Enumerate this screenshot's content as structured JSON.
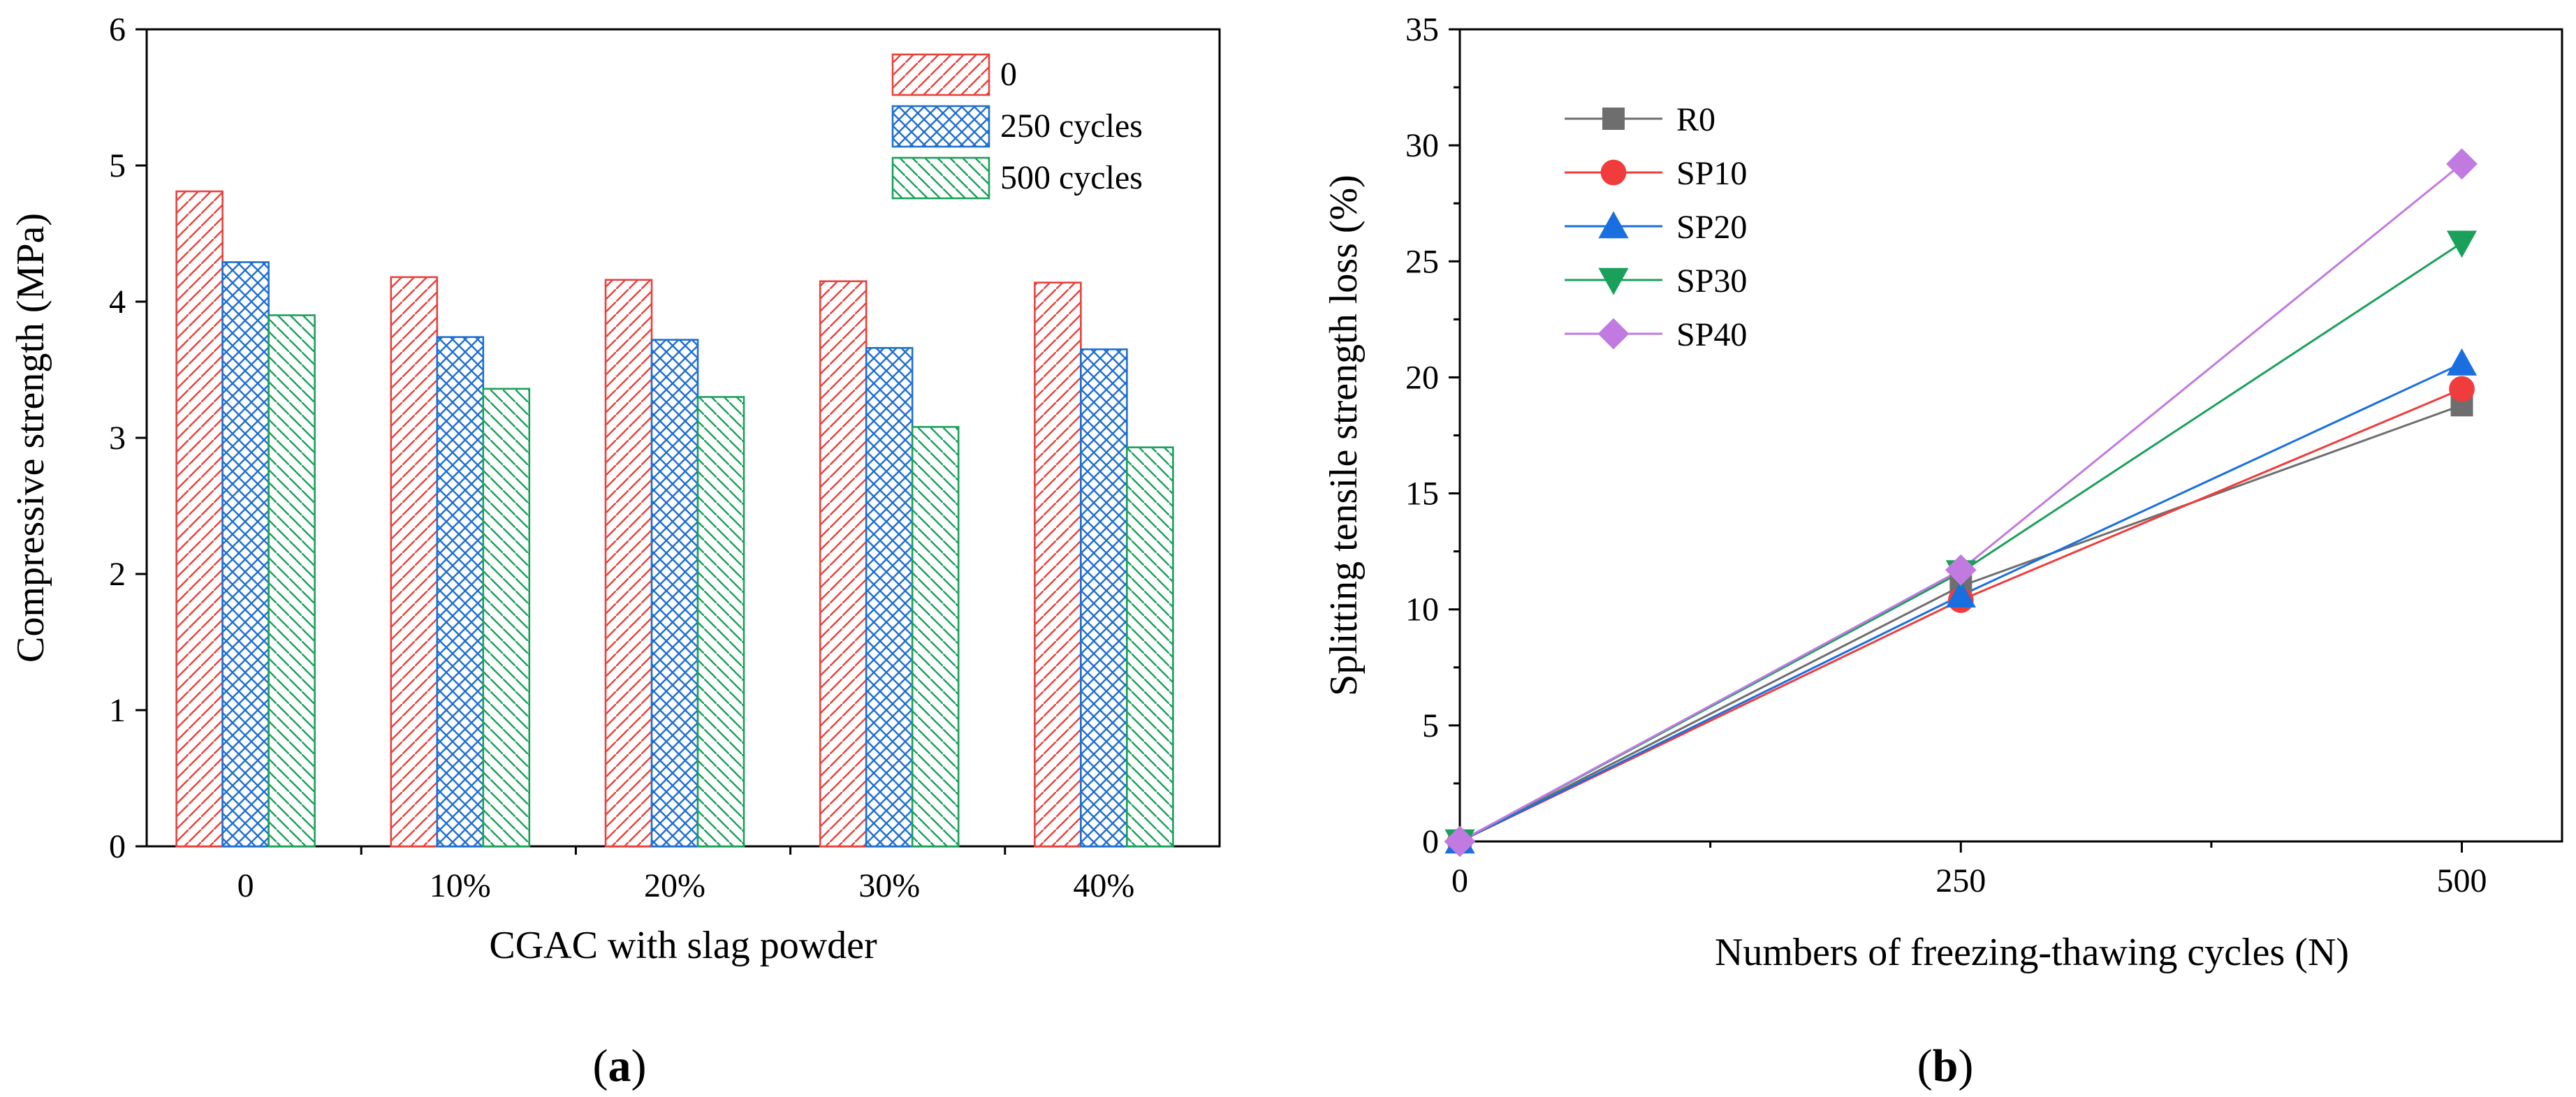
{
  "chart_data": [
    {
      "type": "bar",
      "panel_label": "a",
      "xlabel": "CGAC with slag powder",
      "ylabel": "Compressive strength (MPa)",
      "ylim": [
        0,
        6
      ],
      "yticks": [
        "0",
        "1",
        "2",
        "3",
        "4",
        "5",
        "6"
      ],
      "categories": [
        "0",
        "10%",
        "20%",
        "30%",
        "40%"
      ],
      "legend_position": "top-right",
      "series": [
        {
          "name": "0",
          "color": "#e8413c",
          "pattern": "diagonal",
          "values": [
            4.81,
            4.18,
            4.16,
            4.15,
            4.14
          ]
        },
        {
          "name": "250 cycles",
          "color": "#1f6fd1",
          "pattern": "crosshatch",
          "values": [
            4.29,
            3.74,
            3.72,
            3.66,
            3.65
          ]
        },
        {
          "name": "500 cycles",
          "color": "#1aa05a",
          "pattern": "backdiagonal",
          "values": [
            3.9,
            3.36,
            3.3,
            3.08,
            2.93
          ]
        }
      ]
    },
    {
      "type": "line",
      "panel_label": "b",
      "xlabel": "Numbers of freezing-thawing cycles (N)",
      "ylabel": "Splitting tensile strength loss (%)",
      "ylim": [
        0,
        35
      ],
      "xlim": [
        0,
        550
      ],
      "yticks": [
        "0",
        "5",
        "10",
        "15",
        "20",
        "25",
        "30",
        "35"
      ],
      "xticks": [
        "0",
        "250",
        "500"
      ],
      "x": [
        0,
        250,
        500
      ],
      "legend_position": "top-left",
      "series": [
        {
          "name": "R0",
          "color": "#6e6e6e",
          "marker": "square",
          "values": [
            0,
            11.0,
            18.8
          ]
        },
        {
          "name": "SP10",
          "color": "#f03c3c",
          "marker": "circle",
          "values": [
            0,
            10.4,
            19.5
          ]
        },
        {
          "name": "SP20",
          "color": "#1a6fe0",
          "marker": "triangle-up",
          "values": [
            0,
            10.6,
            20.6
          ]
        },
        {
          "name": "SP30",
          "color": "#1aa05a",
          "marker": "triangle-down",
          "values": [
            0,
            11.6,
            25.8
          ]
        },
        {
          "name": "SP40",
          "color": "#c07ae0",
          "marker": "diamond",
          "values": [
            0,
            11.7,
            29.2
          ]
        }
      ]
    }
  ]
}
